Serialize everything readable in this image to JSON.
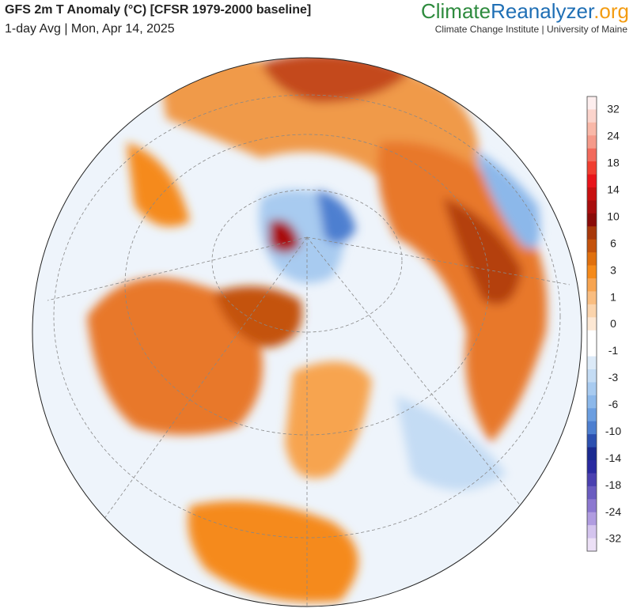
{
  "header": {
    "title": "GFS 2m T Anomaly (°C) [CFSR 1979-2000 baseline]",
    "subtitle": "1-day Avg | Mon, Apr 14, 2025",
    "brand": [
      "Climate",
      "Reanalyzer",
      ".org"
    ],
    "brand_colors": [
      "#2e8b3e",
      "#1f6fb5",
      "#f39c12"
    ],
    "affiliation": "Climate Change Institute | University of Maine"
  },
  "colorbar": {
    "labels": [
      "32",
      "24",
      "18",
      "14",
      "10",
      "6",
      "3",
      "1",
      "0",
      "-1",
      "-3",
      "-6",
      "-10",
      "-14",
      "-18",
      "-24",
      "-32"
    ],
    "colors": [
      "#fdeeee",
      "#fbd4cc",
      "#f9b8a8",
      "#f59a8a",
      "#f26a5c",
      "#f03e30",
      "#e8141a",
      "#c81010",
      "#a80d0d",
      "#8a0b08",
      "#a8380a",
      "#c4520c",
      "#e0700e",
      "#f58a1a",
      "#f7a450",
      "#f9bd80",
      "#fbd4ac",
      "#fde8d4",
      "#ffffff",
      "#ffffff",
      "#dceaf8",
      "#c4dcf4",
      "#a8cbf0",
      "#8cb8ea",
      "#6b9ee0",
      "#4d7fd0",
      "#2c50b0",
      "#1a2a90",
      "#2a2aa0",
      "#4a40b0",
      "#6a5cc0",
      "#8c78d0",
      "#b09ce0",
      "#d4c4ee",
      "#ece0f6"
    ]
  }
}
